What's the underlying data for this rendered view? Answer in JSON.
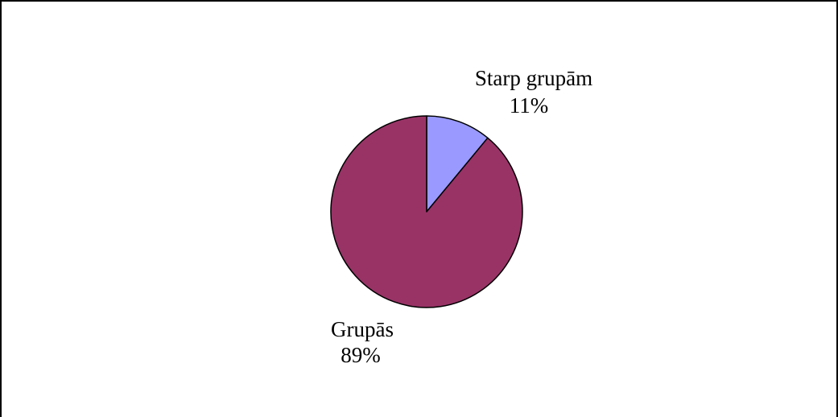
{
  "chart_data": {
    "type": "pie",
    "title": "",
    "categories": [
      "Starp grupām",
      "Grupās"
    ],
    "values": [
      11,
      89
    ],
    "value_labels": [
      "11%",
      "89%"
    ],
    "colors": [
      "#9999ff",
      "#993366"
    ],
    "start": "top, clockwise",
    "legend": "none",
    "data_labels": "outside, category name and percent"
  }
}
